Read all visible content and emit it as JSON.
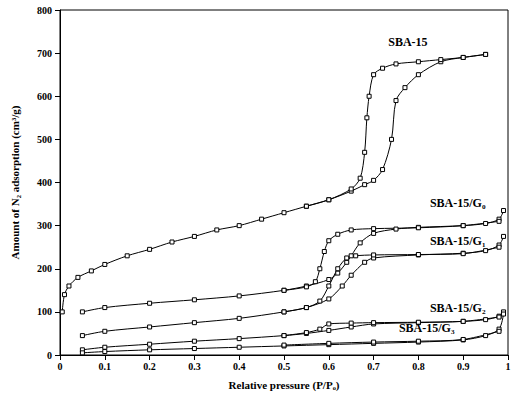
{
  "chart_data": {
    "type": "line",
    "x_label": "Relative pressure (P/Pₒ)",
    "y_label": "Amount of N₂ adsorption (cm³/g)",
    "xlim": [
      0,
      1
    ],
    "xticks": [
      0,
      0.1,
      0.2,
      0.3,
      0.4,
      0.5,
      0.6,
      0.7,
      0.8,
      0.9,
      1
    ],
    "ylim": [
      0,
      800
    ],
    "yticks": [
      0,
      100,
      200,
      300,
      400,
      500,
      600,
      700,
      800
    ],
    "grid": false,
    "marker": "square",
    "line_style": "solid",
    "series": [
      {
        "name": "SBA-15",
        "color": "#000000",
        "x": [
          0.005,
          0.01,
          0.02,
          0.04,
          0.07,
          0.1,
          0.15,
          0.2,
          0.25,
          0.3,
          0.35,
          0.4,
          0.45,
          0.5,
          0.55,
          0.6,
          0.65,
          0.68,
          0.7,
          0.72,
          0.74,
          0.75,
          0.77,
          0.8,
          0.85,
          0.9,
          0.95
        ],
        "values": [
          100,
          140,
          160,
          180,
          195,
          210,
          230,
          245,
          262,
          275,
          290,
          300,
          315,
          330,
          345,
          360,
          380,
          395,
          405,
          430,
          500,
          590,
          620,
          650,
          680,
          690,
          697
        ],
        "desorption_x": [
          0.95,
          0.9,
          0.85,
          0.8,
          0.75,
          0.72,
          0.7,
          0.69,
          0.685,
          0.68,
          0.67,
          0.65,
          0.6,
          0.55
        ],
        "desorption_values": [
          697,
          690,
          685,
          680,
          675,
          665,
          650,
          600,
          550,
          470,
          410,
          385,
          360,
          345
        ]
      },
      {
        "name": "SBA-15/G₀",
        "color": "#000000",
        "x": [
          0.05,
          0.1,
          0.2,
          0.3,
          0.4,
          0.5,
          0.55,
          0.6,
          0.62,
          0.64,
          0.65,
          0.67,
          0.7,
          0.75,
          0.8,
          0.9,
          0.95,
          0.98,
          0.99
        ],
        "values": [
          100,
          110,
          120,
          128,
          137,
          150,
          160,
          175,
          190,
          215,
          230,
          260,
          282,
          292,
          296,
          300,
          305,
          315,
          335
        ],
        "desorption_x": [
          0.98,
          0.9,
          0.8,
          0.7,
          0.65,
          0.62,
          0.6,
          0.59,
          0.58,
          0.57,
          0.55,
          0.5
        ],
        "desorption_values": [
          310,
          300,
          295,
          293,
          290,
          280,
          265,
          240,
          200,
          170,
          158,
          150
        ]
      },
      {
        "name": "SBA-15/G₁",
        "color": "#000000",
        "x": [
          0.05,
          0.1,
          0.2,
          0.3,
          0.4,
          0.5,
          0.55,
          0.6,
          0.63,
          0.65,
          0.68,
          0.7,
          0.8,
          0.9,
          0.95,
          0.98,
          0.99
        ],
        "values": [
          45,
          55,
          65,
          75,
          85,
          100,
          110,
          130,
          160,
          185,
          215,
          225,
          232,
          236,
          242,
          255,
          275
        ],
        "desorption_x": [
          0.98,
          0.9,
          0.8,
          0.7,
          0.66,
          0.64,
          0.62,
          0.6,
          0.58,
          0.55,
          0.5
        ],
        "desorption_values": [
          250,
          235,
          233,
          232,
          230,
          225,
          200,
          160,
          125,
          110,
          100
        ]
      },
      {
        "name": "SBA-15/G₂",
        "color": "#000000",
        "x": [
          0.05,
          0.1,
          0.2,
          0.3,
          0.4,
          0.5,
          0.55,
          0.6,
          0.65,
          0.7,
          0.8,
          0.9,
          0.95,
          0.98,
          0.99
        ],
        "values": [
          12,
          18,
          25,
          32,
          38,
          45,
          50,
          57,
          65,
          72,
          75,
          78,
          82,
          90,
          100
        ],
        "desorption_x": [
          0.98,
          0.9,
          0.8,
          0.7,
          0.65,
          0.6,
          0.58,
          0.55,
          0.5
        ],
        "desorption_values": [
          88,
          78,
          76,
          75,
          74,
          72,
          60,
          52,
          45
        ]
      },
      {
        "name": "SBA-15/G₃",
        "color": "#000000",
        "x": [
          0.05,
          0.1,
          0.2,
          0.3,
          0.4,
          0.5,
          0.6,
          0.7,
          0.8,
          0.9,
          0.95,
          0.98,
          0.99
        ],
        "values": [
          5,
          8,
          12,
          15,
          18,
          21,
          24,
          27,
          30,
          35,
          45,
          60,
          95
        ],
        "desorption_x": [
          0.98,
          0.9,
          0.8,
          0.7,
          0.6,
          0.5
        ],
        "desorption_values": [
          55,
          36,
          32,
          30,
          27,
          23
        ]
      }
    ]
  }
}
